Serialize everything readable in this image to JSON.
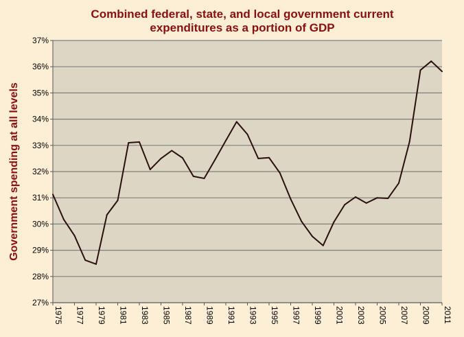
{
  "chart_data": {
    "type": "line",
    "title": [
      "Combined federal, state, and local government current",
      "expenditures as a portion of GDP"
    ],
    "xlabel": "",
    "ylabel": "Government spending at all levels",
    "ylim": [
      27,
      37
    ],
    "yticks": [
      "27%",
      "28%",
      "29%",
      "30%",
      "31%",
      "32%",
      "33%",
      "34%",
      "35%",
      "36%",
      "37%"
    ],
    "xticks": [
      "1975",
      "1977",
      "1979",
      "1981",
      "1983",
      "1985",
      "1987",
      "1989",
      "1991",
      "1993",
      "1995",
      "1997",
      "1999",
      "2001",
      "2003",
      "2005",
      "2007",
      "2009",
      "2011"
    ],
    "grid": true,
    "x": [
      1975,
      1976,
      1977,
      1978,
      1979,
      1980,
      1981,
      1982,
      1983,
      1984,
      1985,
      1986,
      1987,
      1988,
      1989,
      1990,
      1991,
      1992,
      1993,
      1994,
      1995,
      1996,
      1997,
      1998,
      1999,
      2000,
      2001,
      2002,
      2003,
      2004,
      2005,
      2006,
      2007,
      2008,
      2009,
      2010,
      2011
    ],
    "series": [
      {
        "name": "Government spending",
        "values": [
          31.13,
          30.18,
          29.56,
          28.62,
          28.47,
          30.35,
          30.9,
          33.1,
          33.13,
          32.08,
          32.5,
          32.8,
          32.52,
          31.82,
          31.74,
          32.45,
          33.18,
          33.9,
          33.42,
          32.5,
          32.53,
          31.95,
          30.95,
          30.1,
          29.53,
          29.18,
          30.08,
          30.74,
          31.03,
          30.8,
          31.0,
          30.98,
          31.56,
          33.15,
          35.87,
          36.21,
          35.82
        ],
        "color": "#2a0f0f"
      }
    ],
    "colors": {
      "plot_bg": "#ddd6c4",
      "grid": "#7f7f7f",
      "title": "#8b0f0f"
    }
  }
}
